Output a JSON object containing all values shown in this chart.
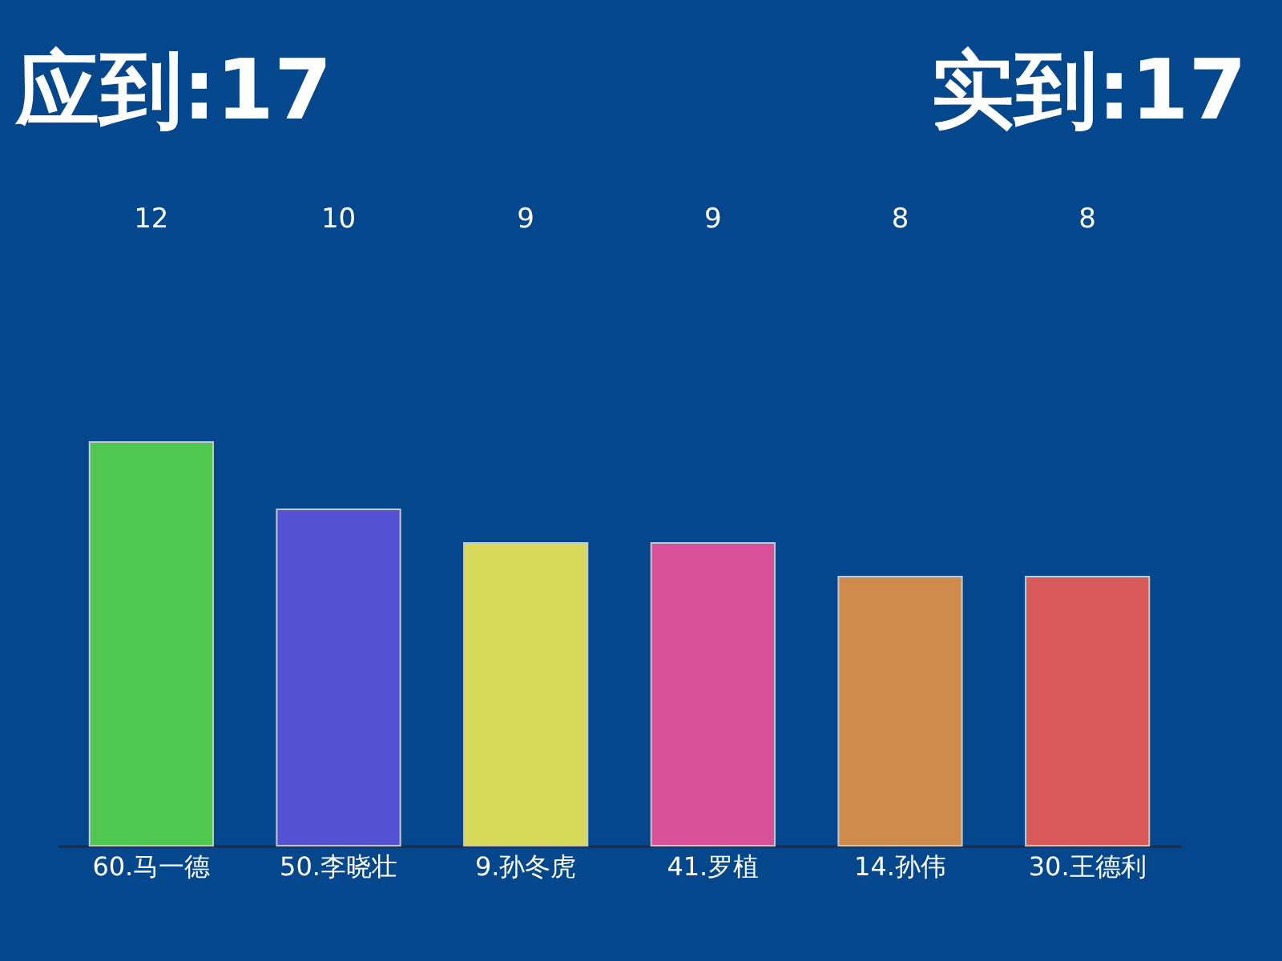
{
  "chart_data": {
    "type": "bar",
    "title": "应到:17",
    "subtitle": "实到:17",
    "categories": [
      "60.马一德",
      "50.李晓壮",
      "9.孙冬虎",
      "41.罗植",
      "14.孙伟",
      "30.王德利"
    ],
    "values": [
      12,
      10,
      9,
      9,
      8,
      8
    ],
    "colors": [
      "#50c850",
      "#5252d2",
      "#d8d85a",
      "#d8509a",
      "#d08a4c",
      "#d85a5a"
    ],
    "data_labels": true
  }
}
